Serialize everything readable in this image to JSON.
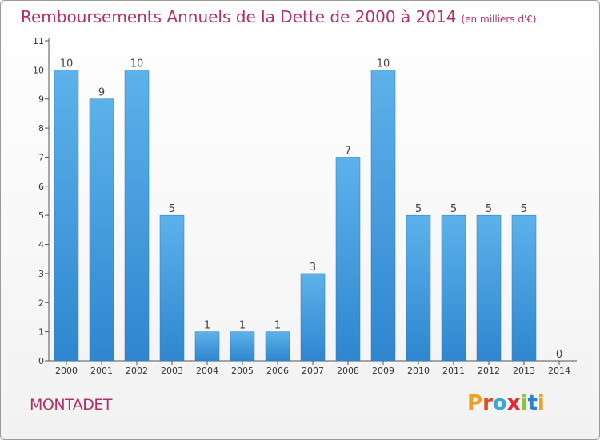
{
  "title": "Remboursements Annuels de la Dette de 2000 à 2014",
  "subtitle": "(en milliers d'€)",
  "place": "MONTADET",
  "logo": {
    "letters": [
      "P",
      "r",
      "o",
      "x",
      "i",
      "t",
      "i"
    ],
    "colors": [
      "#f0a020",
      "#e04c2a",
      "#3aa6dc",
      "#e3262f",
      "#8cc63f",
      "#2c7fd1",
      "#f0a020"
    ]
  },
  "chart_data": {
    "type": "bar",
    "categories": [
      "2000",
      "2001",
      "2002",
      "2003",
      "2004",
      "2005",
      "2006",
      "2007",
      "2008",
      "2009",
      "2010",
      "2011",
      "2012",
      "2013",
      "2014"
    ],
    "values": [
      10,
      9,
      10,
      5,
      1,
      1,
      1,
      3,
      7,
      10,
      5,
      5,
      5,
      5,
      0
    ],
    "data_labels": [
      "10",
      "9",
      "10",
      "5",
      "1",
      "1",
      "1",
      "3",
      "7",
      "10",
      "5",
      "5",
      "5",
      "5",
      "0"
    ],
    "yticks": [
      "0",
      "1",
      "2",
      "3",
      "4",
      "5",
      "6",
      "7",
      "8",
      "9",
      "10",
      "11"
    ],
    "ylim": [
      0,
      11
    ],
    "grid": false,
    "bar_color": "#4da3e2"
  }
}
